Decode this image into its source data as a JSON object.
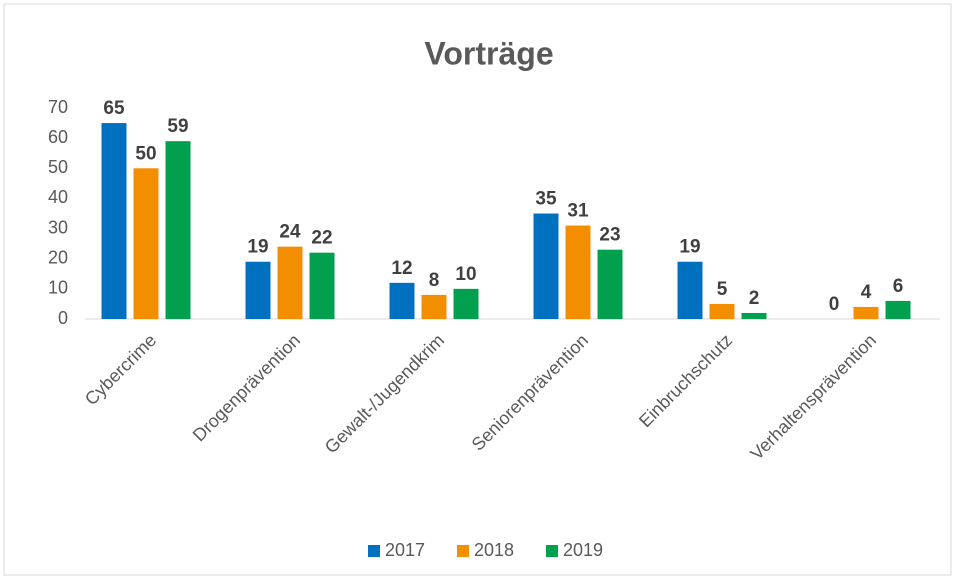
{
  "chart_data": {
    "type": "bar",
    "title": "Vorträge",
    "categories": [
      "Cybercrime",
      "Drogenprävention",
      "Gewalt-/Jugendkrim",
      "Seniorenprävention",
      "Einbruchschutz",
      "Verhaltensprävention"
    ],
    "series": [
      {
        "name": "2017",
        "color": "#0070c0",
        "values": [
          65,
          19,
          12,
          35,
          19,
          0
        ]
      },
      {
        "name": "2018",
        "color": "#f28e00",
        "values": [
          50,
          24,
          8,
          31,
          5,
          4
        ]
      },
      {
        "name": "2019",
        "color": "#00a04e",
        "values": [
          59,
          22,
          10,
          23,
          2,
          6
        ]
      }
    ],
    "ylim": [
      0,
      70
    ],
    "yticks": [
      0,
      10,
      20,
      30,
      40,
      50,
      60,
      70
    ],
    "grid": false,
    "legend": "bottom"
  }
}
